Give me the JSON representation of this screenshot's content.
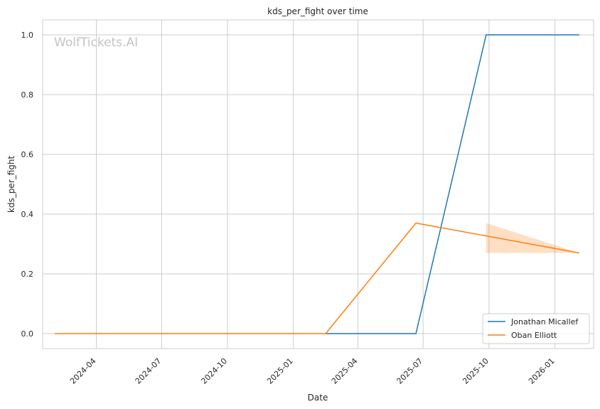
{
  "chart_data": {
    "type": "line",
    "title": "kds_per_fight over time",
    "xlabel": "Date",
    "ylabel": "kds_per_fight",
    "watermark": "WolfTickets.AI",
    "x_ticks": [
      "2024-04",
      "2024-07",
      "2024-10",
      "2025-01",
      "2025-04",
      "2025-07",
      "2025-10",
      "2026-01"
    ],
    "y_ticks": [
      "0.0",
      "0.2",
      "0.4",
      "0.6",
      "0.8",
      "1.0"
    ],
    "ylim": [
      -0.05,
      1.05
    ],
    "xlim": [
      "2024-01-17",
      "2026-02-24"
    ],
    "grid": true,
    "legend_position": "lower right",
    "series": [
      {
        "name": "Jonathan Micallef",
        "color": "#1f77b4",
        "points": [
          {
            "x": "2025-02-15",
            "y": 0.0
          },
          {
            "x": "2025-06-21",
            "y": 0.0
          },
          {
            "x": "2025-09-27",
            "y": 1.0
          },
          {
            "x": "2026-02-04",
            "y": 1.0
          }
        ]
      },
      {
        "name": "Oban Elliott",
        "color": "#ff7f0e",
        "points": [
          {
            "x": "2024-02-03",
            "y": 0.0
          },
          {
            "x": "2025-02-15",
            "y": 0.0
          },
          {
            "x": "2025-06-21",
            "y": 0.37
          },
          {
            "x": "2026-02-04",
            "y": 0.27
          }
        ],
        "band": [
          {
            "x": "2025-09-27",
            "low": 0.27,
            "high": 0.37
          },
          {
            "x": "2026-02-04",
            "low": 0.27,
            "high": 0.27
          }
        ]
      }
    ]
  }
}
